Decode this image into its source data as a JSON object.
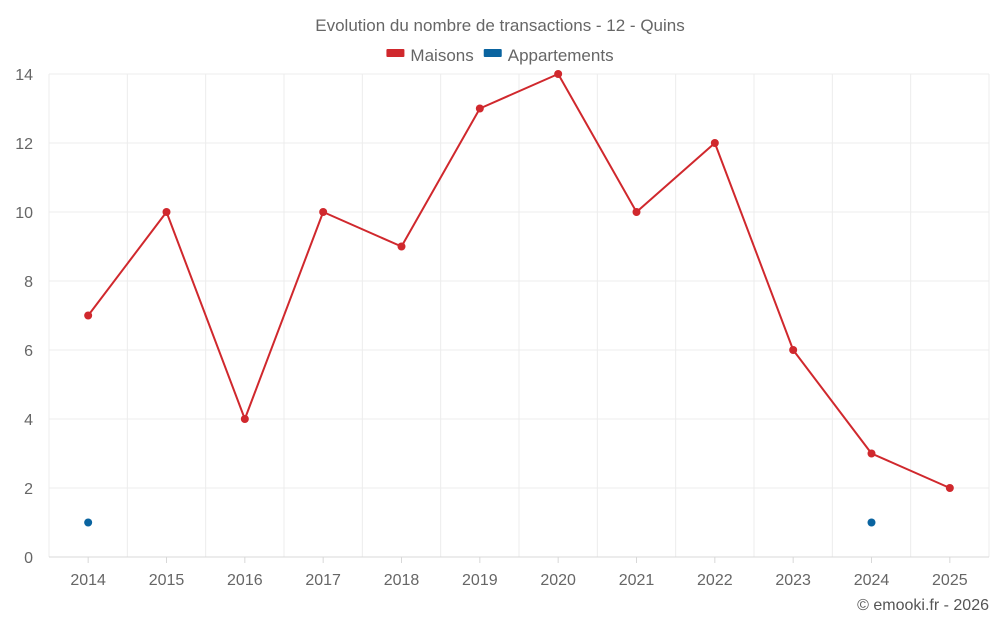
{
  "chart_data": {
    "type": "line",
    "title": "Evolution du nombre de transactions - 12 - Quins",
    "x": [
      "2014",
      "2015",
      "2016",
      "2017",
      "2018",
      "2019",
      "2020",
      "2021",
      "2022",
      "2023",
      "2024",
      "2025"
    ],
    "series": [
      {
        "name": "Maisons",
        "color": "#d0282d",
        "values": [
          7,
          10,
          4,
          10,
          9,
          13,
          14,
          10,
          12,
          6,
          3,
          2
        ]
      },
      {
        "name": "Appartements",
        "color": "#0a64a0",
        "values": [
          1,
          null,
          null,
          null,
          null,
          null,
          null,
          null,
          null,
          null,
          1,
          null
        ]
      }
    ],
    "yticks": [
      0,
      2,
      4,
      6,
      8,
      10,
      12,
      14
    ],
    "ylim": [
      0,
      14
    ],
    "xlabel": "",
    "ylabel": "",
    "grid": true,
    "legend": "top-center"
  },
  "footer": {
    "credit": "© emooki.fr - 2026"
  }
}
